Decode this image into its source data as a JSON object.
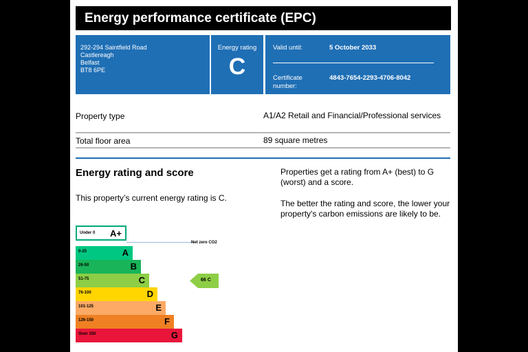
{
  "header": {
    "title": "Energy performance certificate (EPC)"
  },
  "address": {
    "lines": [
      "292-294 Saintfield Road",
      "Castlereagh",
      "Belfast",
      "BT8 6PE"
    ]
  },
  "rating": {
    "label": "Energy rating",
    "letter": "C"
  },
  "validity": {
    "valid_label": "Valid until:",
    "valid_value": "5 October 2033",
    "cert_label_1": "Certificate",
    "cert_label_2": "number:",
    "cert_value": "4843-7654-2293-4706-8042"
  },
  "property": {
    "type_label": "Property type",
    "type_value": "A1/A2 Retail and Financial/Professional services",
    "area_label": "Total floor area",
    "area_value": "89 square metres"
  },
  "section": {
    "heading": "Energy rating and score",
    "current": "This property’s current energy rating is C.",
    "para1": "Properties get a rating from A+ (best) to G (worst) and a score.",
    "para2": "The better the rating and score, the lower your property's carbon emissions are likely to be."
  },
  "scale": {
    "aplus": {
      "range": "Under 0",
      "letter": "A+",
      "color": "#00a87a"
    },
    "net_zero_label": "Net zero CO2",
    "bands": [
      {
        "range": "0-25",
        "letter": "A",
        "color": "#00c781"
      },
      {
        "range": "26-50",
        "letter": "B",
        "color": "#19b459"
      },
      {
        "range": "51-75",
        "letter": "C",
        "color": "#8dce46"
      },
      {
        "range": "76-100",
        "letter": "D",
        "color": "#ffd500"
      },
      {
        "range": "101-125",
        "letter": "E",
        "color": "#fcaa65"
      },
      {
        "range": "126-150",
        "letter": "F",
        "color": "#ef8023"
      },
      {
        "range": "Over 150",
        "letter": "G",
        "color": "#e9153b"
      }
    ],
    "current_score": "66 C",
    "current_color": "#8dce46"
  }
}
